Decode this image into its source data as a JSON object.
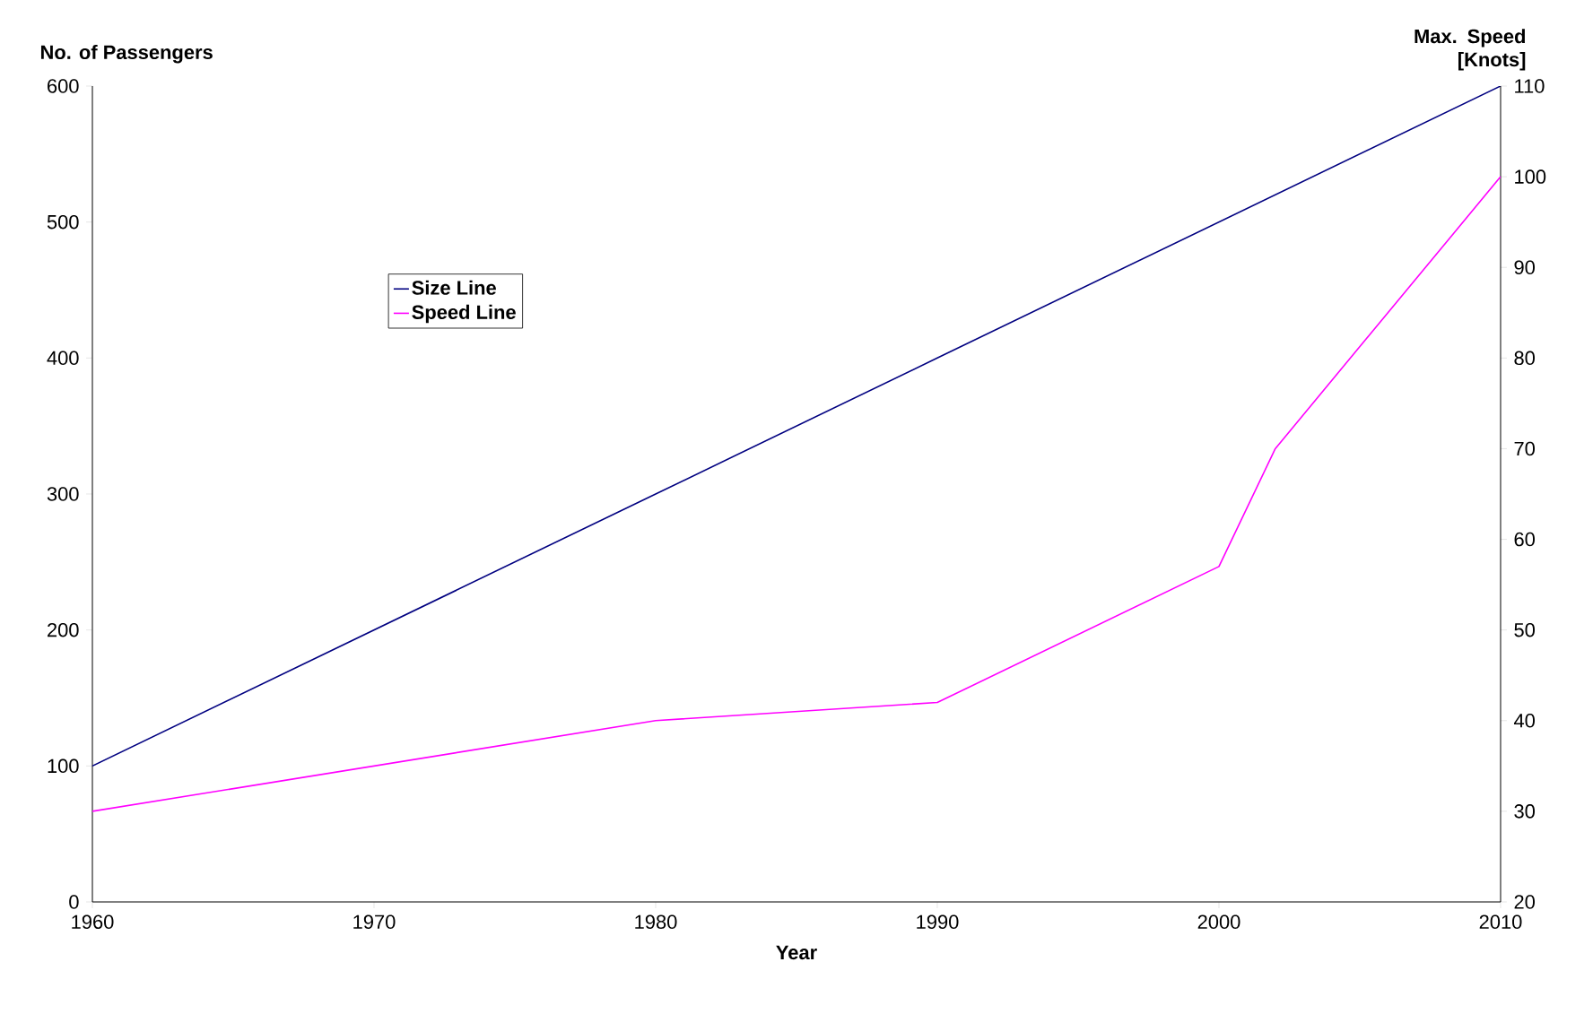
{
  "chart_data": {
    "type": "line",
    "xlabel": "Year",
    "ylabel": "No. of Passengers",
    "y2label": "Max. Speed [Knots]",
    "xlim": [
      1960,
      2010
    ],
    "xticks": [
      1960,
      1970,
      1980,
      1990,
      2000,
      2010
    ],
    "ylim": [
      0,
      600
    ],
    "yticks": [
      0,
      100,
      200,
      300,
      400,
      500,
      600
    ],
    "y2lim": [
      20,
      110
    ],
    "y2ticks": [
      20,
      30,
      40,
      50,
      60,
      70,
      80,
      90,
      100,
      110
    ],
    "grid": false,
    "legend": "top left",
    "marker": "none",
    "line_style": "solid",
    "series": [
      {
        "name": "Size Line",
        "color": "#000080",
        "x": [
          1960,
          1980,
          1990,
          2000,
          2010
        ],
        "values": [
          100,
          300,
          400,
          500,
          600
        ]
      },
      {
        "name": "Speed Line",
        "color": "#ff00ff",
        "axis": "y2",
        "x": [
          1960,
          1980,
          1990,
          2000,
          2002,
          2010
        ],
        "values": [
          30,
          40,
          42,
          57,
          70,
          100
        ]
      }
    ]
  }
}
